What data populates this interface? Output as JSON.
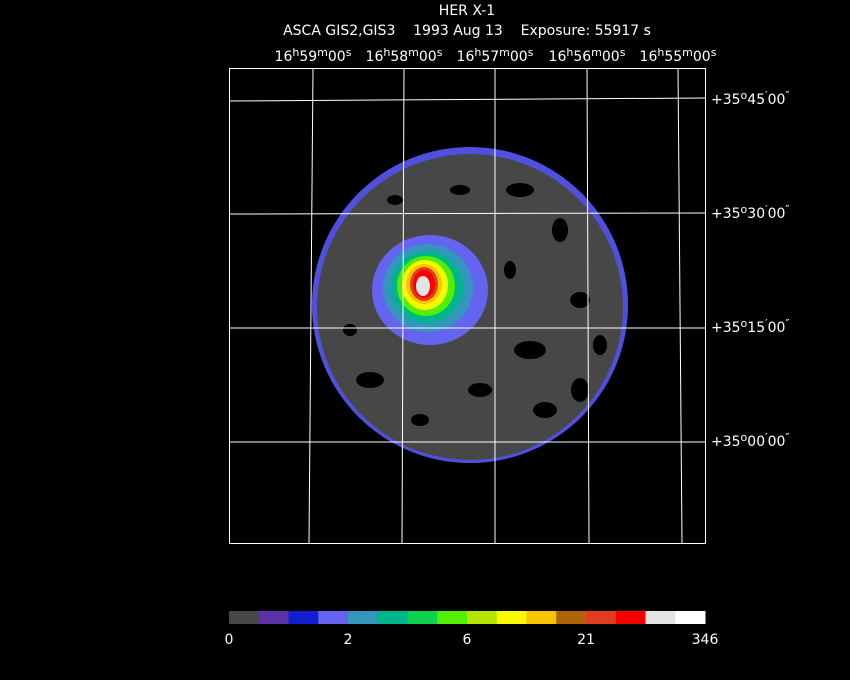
{
  "header": {
    "title": "HER X-1",
    "subtitle": "ASCA GIS2,GIS3    1993 Aug 13    Exposure: 55917 s"
  },
  "ra_labels": [
    [
      "16",
      "h",
      "59",
      "m",
      "00",
      "s"
    ],
    [
      "16",
      "h",
      "58",
      "m",
      "00",
      "s"
    ],
    [
      "16",
      "h",
      "57",
      "m",
      "00",
      "s"
    ],
    [
      "16",
      "h",
      "56",
      "m",
      "00",
      "s"
    ],
    [
      "16",
      "h",
      "55",
      "m",
      "00",
      "s"
    ]
  ],
  "dec_labels": [
    [
      "+35",
      "o",
      "45",
      "′",
      "00",
      "″"
    ],
    [
      "+35",
      "o",
      "30",
      "′",
      "00",
      "″"
    ],
    [
      "+35",
      "o",
      "15",
      "′",
      "00",
      "″"
    ],
    [
      "+35",
      "o",
      "00",
      "′",
      "00",
      "″"
    ]
  ],
  "colorbar": {
    "colors": [
      "#474747",
      "#5a32a8",
      "#1020d0",
      "#6464f0",
      "#3496bc",
      "#00b48c",
      "#10d050",
      "#50f000",
      "#b4e400",
      "#f8f800",
      "#f8c400",
      "#b06408",
      "#e03c20",
      "#f80000",
      "#e4e4e4",
      "#ffffff"
    ],
    "labels": [
      "0",
      "2",
      "6",
      "21",
      "346"
    ]
  }
}
